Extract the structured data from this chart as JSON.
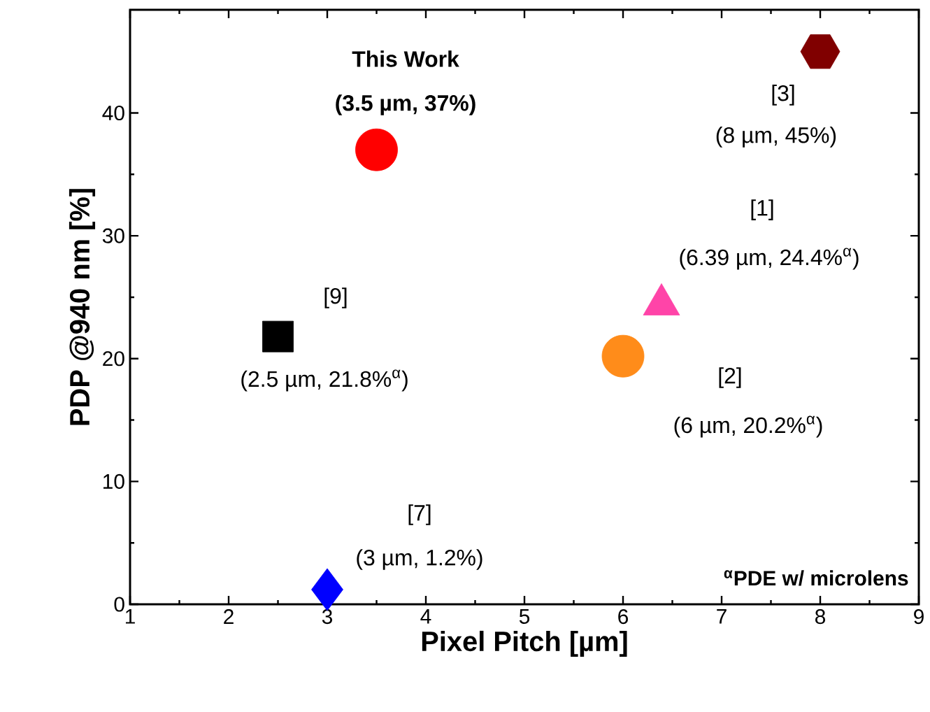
{
  "chart_data": {
    "type": "scatter",
    "xlabel": "Pixel Pitch [µm]",
    "ylabel": "PDP @940 nm [%]",
    "xlim": [
      1,
      9
    ],
    "xticks": [
      1,
      2,
      3,
      4,
      5,
      6,
      7,
      8,
      9
    ],
    "ylim": [
      0,
      48.4
    ],
    "yticks": [
      0,
      10,
      20,
      30,
      40
    ],
    "series": [
      {
        "x": [
          3.5
        ],
        "values": [
          37
        ],
        "color": "#ff0000",
        "marker": "circle"
      },
      {
        "x": [
          8
        ],
        "values": [
          45
        ],
        "color": "#800000"
      },
      {
        "x": [
          6.39
        ],
        "values": [
          24.4
        ],
        "color": "#ff44a8",
        "marker": "triangle"
      },
      {
        "x": [
          6
        ],
        "values": [
          20.2
        ],
        "color": "#ff8c1a",
        "marker": "circle"
      },
      {
        "x": [
          2.5
        ],
        "values": [
          21.8
        ],
        "color": "#000000",
        "marker": "square"
      },
      {
        "x": [
          3
        ],
        "values": [
          1.2
        ],
        "color": "#0000ff",
        "marker": "diamond"
      }
    ],
    "annotations": [
      "This Work",
      "(3.5 µm, 37%)",
      "[3]",
      "(8 µm, 45%)",
      "[1]",
      "(6.39 µm, 24.4%$^{α}$)",
      "[9]",
      "(2.5 µm, 21.8%$^{α}$)",
      "[2]",
      "(6 µm, 20.2%$^{α}$)",
      "[7]",
      "(3 µm, 1.2%)",
      "$^{α}$PDE w/ microlens"
    ]
  }
}
